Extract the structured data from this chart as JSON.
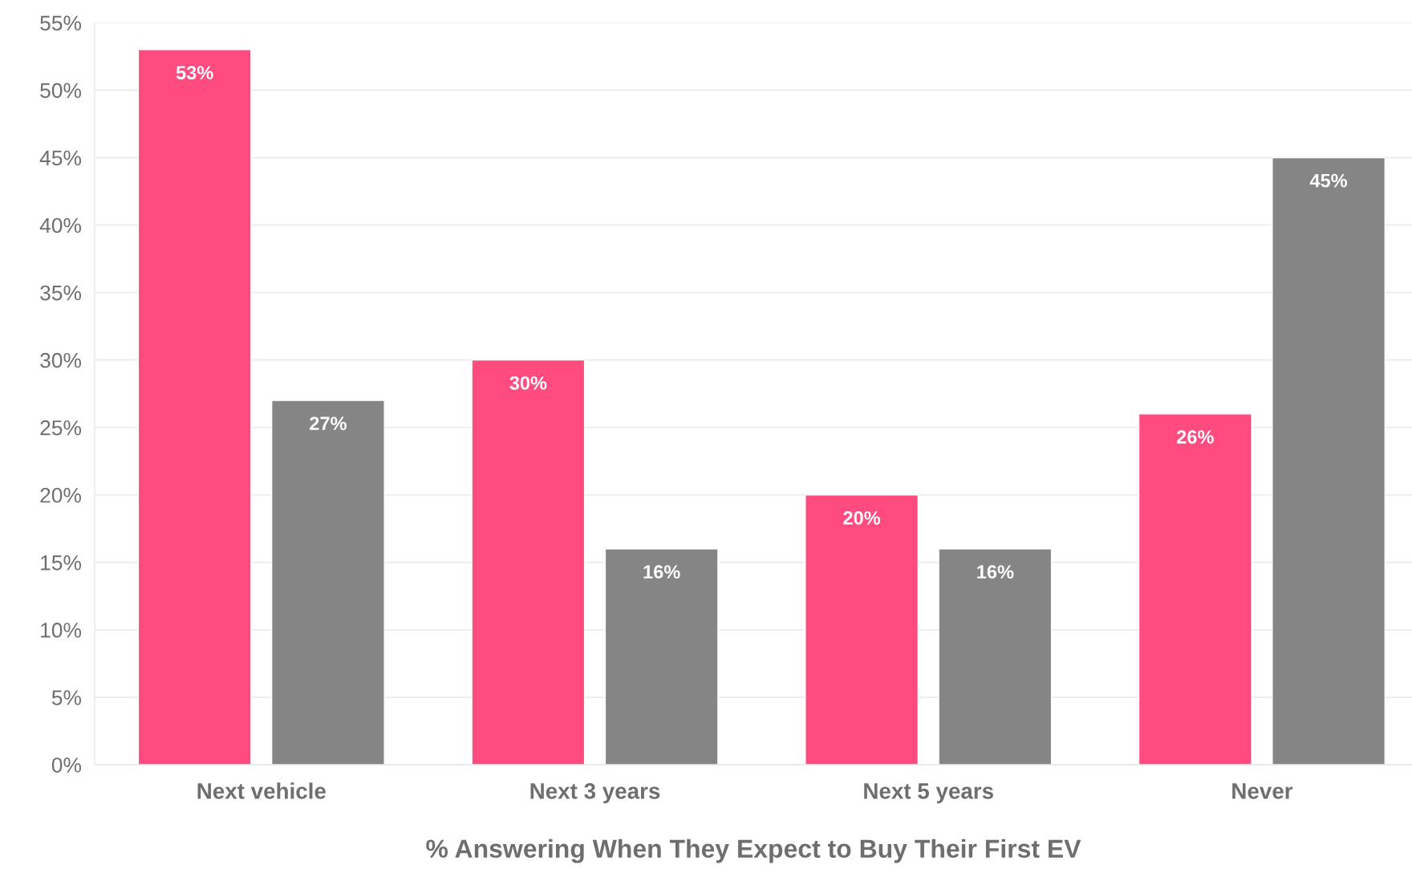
{
  "chart_data": {
    "type": "bar",
    "xlabel": "% Answering When They Expect to Buy Their First EV",
    "categories": [
      "Next vehicle",
      "Next 3 years",
      "Next 5 years",
      "Never"
    ],
    "series": [
      {
        "color": "#ff4b7d",
        "values": [
          53,
          30,
          20,
          26
        ]
      },
      {
        "color": "#858585",
        "values": [
          27,
          16,
          16,
          45
        ]
      }
    ],
    "ylim": [
      0,
      55
    ],
    "yticks": [
      {
        "value": 0,
        "label": "0%"
      },
      {
        "value": 5,
        "label": "5%"
      },
      {
        "value": 10,
        "label": "10%"
      },
      {
        "value": 15,
        "label": "15%"
      },
      {
        "value": 20,
        "label": "20%"
      },
      {
        "value": 25,
        "label": "25%"
      },
      {
        "value": 30,
        "label": "30%"
      },
      {
        "value": 35,
        "label": "35%"
      },
      {
        "value": 40,
        "label": "40%"
      },
      {
        "value": 45,
        "label": "45%"
      },
      {
        "value": 50,
        "label": "50%"
      },
      {
        "value": 55,
        "label": "55%"
      }
    ],
    "value_labels": [
      [
        "53%",
        "30%",
        "20%",
        "26%"
      ],
      [
        "27%",
        "16%",
        "16%",
        "45%"
      ]
    ],
    "grid": "y",
    "legend": false
  }
}
